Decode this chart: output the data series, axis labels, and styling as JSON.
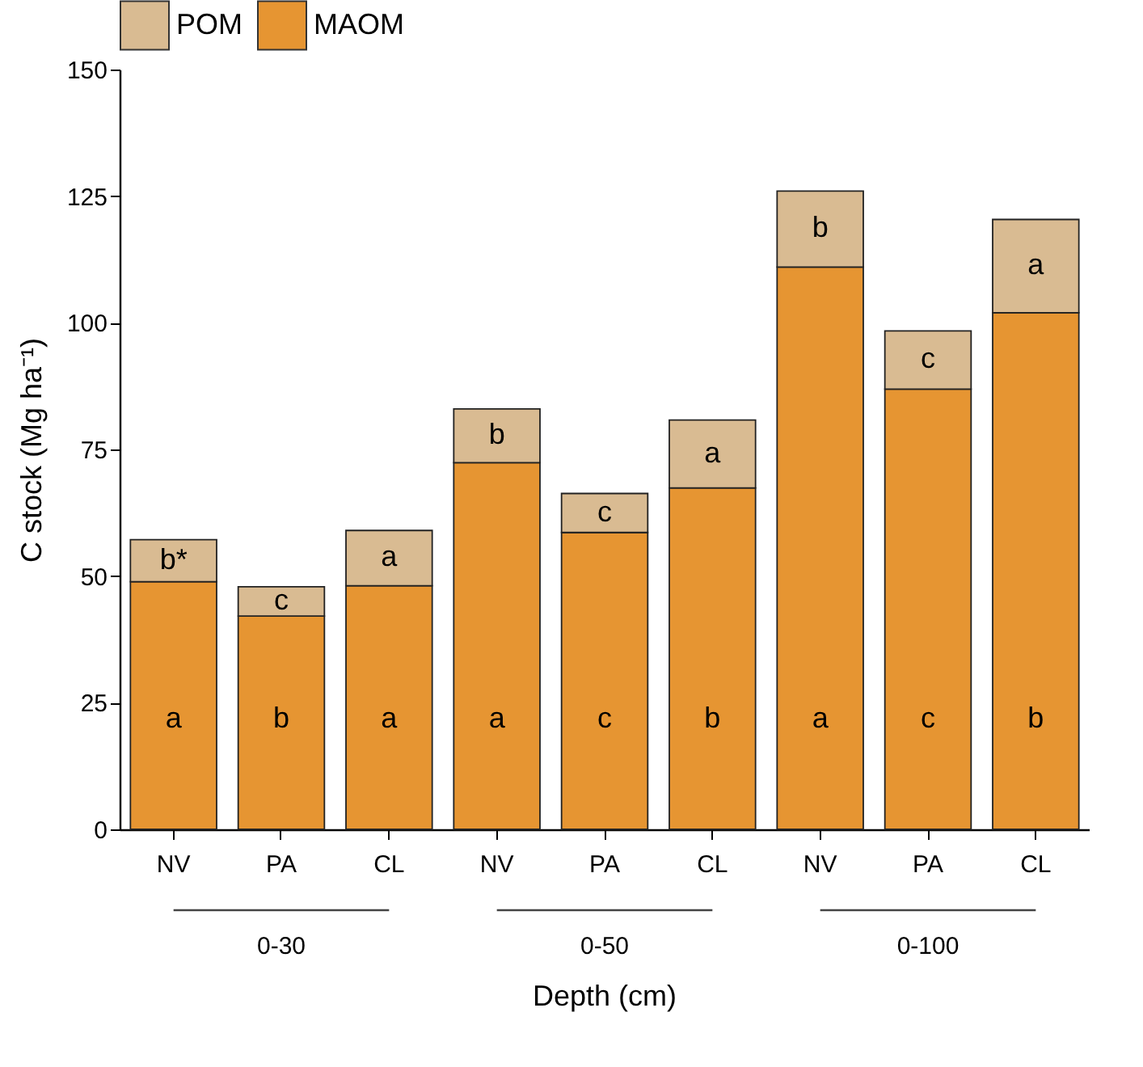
{
  "chart_data": {
    "type": "bar",
    "stacked": true,
    "categories": [
      "NV",
      "PA",
      "CL",
      "NV",
      "PA",
      "CL",
      "NV",
      "PA",
      "CL"
    ],
    "series": [
      {
        "name": "MAOM",
        "color": "#e69532",
        "values": [
          48.9,
          42.1,
          48.1,
          72.4,
          58.6,
          67.4,
          111.0,
          86.9,
          102.0
        ],
        "value_labels": [
          "a",
          "b",
          "a",
          "a",
          "c",
          "b",
          "a",
          "c",
          "b"
        ]
      },
      {
        "name": "POM",
        "color": "#d9bb92",
        "values": [
          8.3,
          5.8,
          10.9,
          10.6,
          7.7,
          13.4,
          15.0,
          11.5,
          18.4
        ],
        "value_labels": [
          "b*",
          "c",
          "a",
          "b",
          "c",
          "a",
          "b",
          "c",
          "a"
        ]
      }
    ],
    "xlabel": "Depth (cm)",
    "ylabel": "C stock (Mg ha⁻¹)",
    "annotations": [
      "0-30",
      "0-50",
      "0-100"
    ],
    "ylim": [
      0,
      150
    ],
    "yticks": [
      0,
      25,
      50,
      75,
      100,
      125,
      150
    ],
    "legend": "top",
    "grid": false
  }
}
